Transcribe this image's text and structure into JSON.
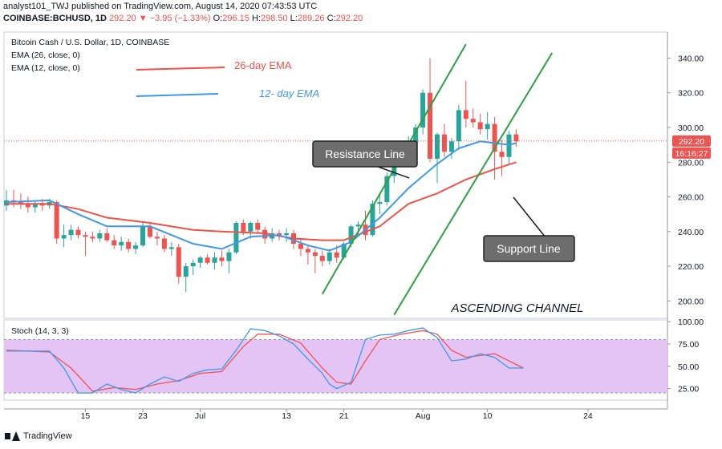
{
  "header": {
    "line1": "analyst101_TWJ published on TradingView.com, August 14, 2020 07:43:53 UTC",
    "symbol": "COINBASE:BCHUSD, 1D",
    "price": "292.20",
    "change": "−3.95 (−1.33%)",
    "o_label": "O:",
    "o": "296.15",
    "h_label": "H:",
    "h": "298.50",
    "l_label": "L:",
    "l": "289.26",
    "c_label": "C:",
    "c": "292.20"
  },
  "legend": {
    "title": "Bitcoin Cash / U.S. Dollar, 1D, COINBASE",
    "ema26": "EMA (26, close, 0)",
    "ema12": "EMA (12, close, 0)"
  },
  "annotations": {
    "ema26": "26-day EMA",
    "ema12": "12- day EMA",
    "resistance": "Resistance Line",
    "support": "Support Line",
    "channel": "ASCENDING CHANNEL"
  },
  "stoch_label": "Stoch (14, 3, 3)",
  "price_tag": "292.20",
  "countdown": "16:16:27",
  "footer": {
    "brand": "TradingView"
  },
  "colors": {
    "up": "#26a69a",
    "down": "#ef5350",
    "ema26": "#f05248",
    "ema12": "#3f98ec",
    "channel": "#2ea043",
    "stoch_k": "#3f98ec",
    "stoch_d": "#ef5350",
    "stoch_band": "#e3c4f5"
  },
  "chart_data": {
    "type": "candlestick",
    "price_axis": {
      "ticks": [
        200,
        220,
        240,
        260,
        280,
        300,
        320,
        340
      ],
      "labels": [
        "200.00",
        "220.00",
        "240.00",
        "260.00",
        "280.00",
        "300.00",
        "320.00",
        "340.00"
      ],
      "ylim": [
        190,
        355
      ]
    },
    "stoch_axis": {
      "ticks": [
        25,
        50,
        75,
        100
      ],
      "labels": [
        "25.00",
        "50.00",
        "75.00",
        "100.00"
      ],
      "ylim": [
        12,
        102
      ]
    },
    "x_axis": {
      "ticks": [
        {
          "label": "15",
          "i": 11
        },
        {
          "label": "23",
          "i": 19
        },
        {
          "label": "Jul",
          "i": 27
        },
        {
          "label": "13",
          "i": 39
        },
        {
          "label": "21",
          "i": 47
        },
        {
          "label": "Aug",
          "i": 58
        },
        {
          "label": "10",
          "i": 67
        },
        {
          "label": "24",
          "i": 81
        }
      ]
    },
    "candles": [
      [
        255,
        264,
        252,
        258
      ],
      [
        258,
        264,
        254,
        257
      ],
      [
        257,
        262,
        253,
        256
      ],
      [
        256,
        260,
        251,
        254
      ],
      [
        254,
        258,
        251,
        256
      ],
      [
        256,
        259,
        252,
        255
      ],
      [
        255,
        259,
        253,
        257
      ],
      [
        257,
        258,
        233,
        236
      ],
      [
        236,
        244,
        231,
        238
      ],
      [
        238,
        244,
        235,
        241
      ],
      [
        241,
        243,
        236,
        238
      ],
      [
        238,
        240,
        226,
        237
      ],
      [
        237,
        240,
        234,
        236
      ],
      [
        236,
        241,
        234,
        239
      ],
      [
        239,
        242,
        234,
        235
      ],
      [
        235,
        238,
        230,
        232
      ],
      [
        232,
        237,
        229,
        234
      ],
      [
        234,
        236,
        228,
        230
      ],
      [
        230,
        234,
        227,
        232
      ],
      [
        232,
        246,
        231,
        243
      ],
      [
        243,
        245,
        236,
        237
      ],
      [
        237,
        240,
        232,
        236
      ],
      [
        236,
        238,
        228,
        230
      ],
      [
        230,
        234,
        226,
        231
      ],
      [
        231,
        233,
        210,
        214
      ],
      [
        214,
        222,
        205,
        220
      ],
      [
        220,
        224,
        215,
        222
      ],
      [
        222,
        226,
        219,
        225
      ],
      [
        225,
        227,
        221,
        222
      ],
      [
        222,
        228,
        218,
        225
      ],
      [
        225,
        229,
        220,
        223
      ],
      [
        223,
        230,
        216,
        228
      ],
      [
        228,
        246,
        227,
        245
      ],
      [
        245,
        247,
        238,
        240
      ],
      [
        240,
        246,
        236,
        245
      ],
      [
        245,
        247,
        239,
        241
      ],
      [
        241,
        243,
        233,
        236
      ],
      [
        236,
        242,
        234,
        239
      ],
      [
        239,
        241,
        235,
        238
      ],
      [
        238,
        242,
        234,
        239
      ],
      [
        239,
        241,
        230,
        233
      ],
      [
        233,
        236,
        226,
        230
      ],
      [
        230,
        232,
        221,
        228
      ],
      [
        228,
        230,
        216,
        226
      ],
      [
        226,
        229,
        220,
        223
      ],
      [
        223,
        230,
        221,
        228
      ],
      [
        228,
        232,
        222,
        225
      ],
      [
        225,
        234,
        224,
        233
      ],
      [
        233,
        244,
        231,
        243
      ],
      [
        243,
        246,
        238,
        244
      ],
      [
        244,
        252,
        235,
        238
      ],
      [
        238,
        258,
        237,
        256
      ],
      [
        256,
        262,
        250,
        257
      ],
      [
        257,
        274,
        255,
        272
      ],
      [
        272,
        292,
        268,
        290
      ],
      [
        290,
        292,
        280,
        286
      ],
      [
        286,
        295,
        282,
        291
      ],
      [
        291,
        302,
        289,
        300
      ],
      [
        300,
        322,
        296,
        320
      ],
      [
        320,
        340,
        280,
        282
      ],
      [
        282,
        297,
        268,
        296
      ],
      [
        296,
        302,
        283,
        286
      ],
      [
        286,
        294,
        282,
        292
      ],
      [
        292,
        313,
        287,
        310
      ],
      [
        310,
        327,
        300,
        305
      ],
      [
        305,
        311,
        300,
        303
      ],
      [
        303,
        308,
        296,
        299
      ],
      [
        299,
        309,
        293,
        302
      ],
      [
        302,
        306,
        270,
        286
      ],
      [
        286,
        293,
        272,
        283
      ],
      [
        283,
        298,
        279,
        296
      ],
      [
        296,
        299,
        289,
        292
      ]
    ],
    "ema26": [
      [
        0,
        256
      ],
      [
        6,
        256
      ],
      [
        10,
        253
      ],
      [
        14,
        248
      ],
      [
        20,
        245
      ],
      [
        26,
        241
      ],
      [
        30,
        240
      ],
      [
        36,
        239
      ],
      [
        40,
        236
      ],
      [
        44,
        235
      ],
      [
        47,
        235
      ],
      [
        52,
        243
      ],
      [
        56,
        256
      ],
      [
        60,
        262
      ],
      [
        64,
        270
      ],
      [
        68,
        276
      ],
      [
        71,
        280
      ]
    ],
    "ema12": [
      [
        0,
        257
      ],
      [
        6,
        258
      ],
      [
        10,
        250
      ],
      [
        14,
        243
      ],
      [
        20,
        243
      ],
      [
        26,
        233
      ],
      [
        30,
        230
      ],
      [
        34,
        237
      ],
      [
        38,
        238
      ],
      [
        42,
        232
      ],
      [
        45,
        229
      ],
      [
        48,
        234
      ],
      [
        52,
        248
      ],
      [
        56,
        265
      ],
      [
        60,
        279
      ],
      [
        63,
        288
      ],
      [
        66,
        292
      ],
      [
        68,
        291
      ],
      [
        70,
        290
      ],
      [
        71,
        291
      ]
    ],
    "stoch_k": [
      [
        0,
        67
      ],
      [
        6,
        67
      ],
      [
        8,
        48
      ],
      [
        10,
        20
      ],
      [
        12,
        20
      ],
      [
        14,
        30
      ],
      [
        16,
        24
      ],
      [
        18,
        20
      ],
      [
        20,
        30
      ],
      [
        22,
        38
      ],
      [
        24,
        33
      ],
      [
        26,
        42
      ],
      [
        28,
        46
      ],
      [
        30,
        47
      ],
      [
        32,
        68
      ],
      [
        34,
        92
      ],
      [
        36,
        90
      ],
      [
        38,
        84
      ],
      [
        40,
        75
      ],
      [
        42,
        58
      ],
      [
        44,
        42
      ],
      [
        45,
        30
      ],
      [
        46,
        25
      ],
      [
        48,
        32
      ],
      [
        50,
        80
      ],
      [
        52,
        85
      ],
      [
        54,
        86
      ],
      [
        56,
        90
      ],
      [
        58,
        93
      ],
      [
        60,
        82
      ],
      [
        62,
        56
      ],
      [
        64,
        58
      ],
      [
        66,
        64
      ],
      [
        68,
        60
      ],
      [
        70,
        48
      ],
      [
        72,
        48
      ]
    ],
    "stoch_d": [
      [
        0,
        68
      ],
      [
        6,
        66
      ],
      [
        9,
        48
      ],
      [
        12,
        22
      ],
      [
        15,
        26
      ],
      [
        18,
        24
      ],
      [
        21,
        30
      ],
      [
        24,
        34
      ],
      [
        27,
        42
      ],
      [
        30,
        44
      ],
      [
        33,
        72
      ],
      [
        35,
        86
      ],
      [
        38,
        86
      ],
      [
        41,
        76
      ],
      [
        44,
        48
      ],
      [
        46,
        32
      ],
      [
        48,
        30
      ],
      [
        50,
        56
      ],
      [
        52,
        80
      ],
      [
        55,
        86
      ],
      [
        58,
        90
      ],
      [
        60,
        86
      ],
      [
        62,
        68
      ],
      [
        64,
        60
      ],
      [
        66,
        62
      ],
      [
        68,
        64
      ],
      [
        70,
        56
      ],
      [
        72,
        48
      ]
    ],
    "channel_upper": [
      [
        44,
        204
      ],
      [
        64,
        348
      ]
    ],
    "channel_lower": [
      [
        54,
        192
      ],
      [
        76,
        343
      ]
    ]
  }
}
